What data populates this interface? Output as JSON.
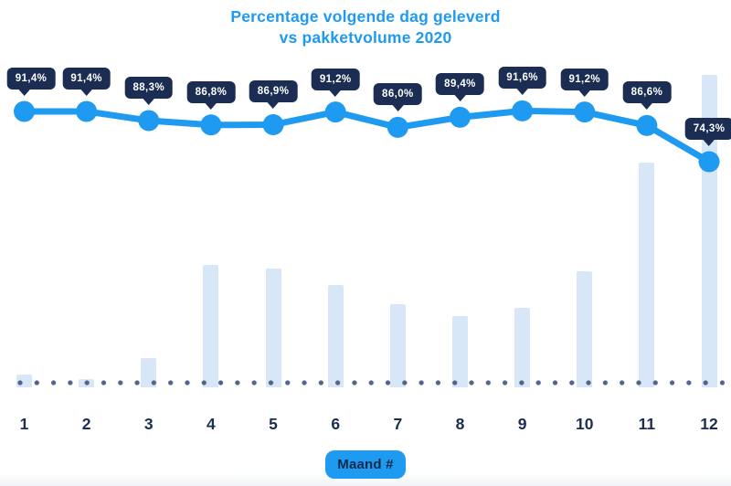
{
  "title": {
    "line1": "Percentage volgende dag geleverd",
    "line2": "vs pakketvolume 2020"
  },
  "x_axis": {
    "label": "Maand #",
    "categories": [
      "1",
      "2",
      "3",
      "4",
      "5",
      "6",
      "7",
      "8",
      "9",
      "10",
      "11",
      "12"
    ]
  },
  "chart_data": {
    "type": "combo",
    "title": "Percentage volgende dag geleverd vs pakketvolume 2020",
    "xlabel": "Maand #",
    "ylabel": "",
    "legend": "none",
    "grid": false,
    "baseline": "dotted horizontal line at x-axis",
    "categories": [
      1,
      2,
      3,
      4,
      5,
      6,
      7,
      8,
      9,
      10,
      11,
      12
    ],
    "series": [
      {
        "name": "Percentage volgende dag geleverd",
        "type": "line",
        "unit": "%",
        "values": [
          91.4,
          91.4,
          88.3,
          86.8,
          86.9,
          91.2,
          86.0,
          89.4,
          91.6,
          91.2,
          86.6,
          74.3
        ],
        "labels": [
          "91,4%",
          "91,4%",
          "88,3%",
          "86,8%",
          "86,9%",
          "91,2%",
          "86,0%",
          "89,4%",
          "91,6%",
          "91,2%",
          "86,6%",
          "74,3%"
        ],
        "visible_range": [
          74.3,
          91.6
        ]
      },
      {
        "name": "Pakketvolume",
        "type": "bar",
        "unit": "relative height (axis unlabeled, px as rendered)",
        "values": [
          14,
          9,
          32,
          134,
          130,
          112,
          91,
          78,
          87,
          127,
          246,
          342
        ]
      }
    ]
  },
  "colors": {
    "accent_blue": "#1E9AF0",
    "tooltip_navy": "#1B2D52",
    "bar_fill": "#D7E7F8",
    "baseline_dot": "#53648A",
    "month_label": "#1B2D52",
    "badge_text": "#12294E",
    "background": "#FFFFFF"
  }
}
